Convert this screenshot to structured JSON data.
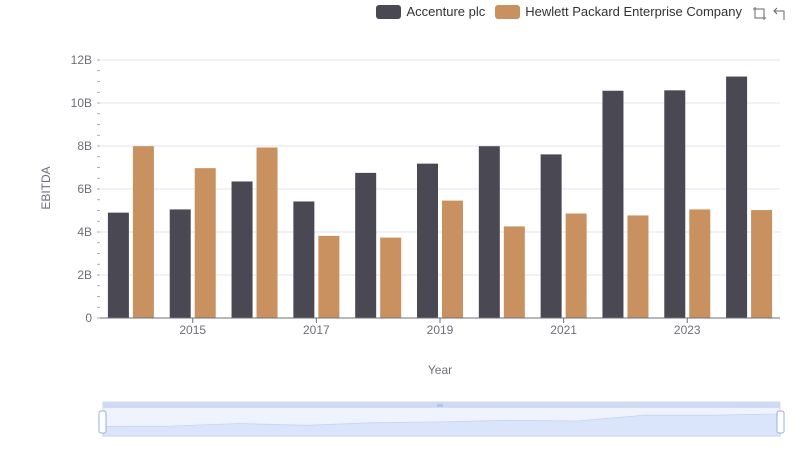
{
  "toolbox": {
    "zoom_icon": "zoom-icon",
    "restore_icon": "restore-icon"
  },
  "chart_data": {
    "type": "bar",
    "xlabel": "Year",
    "ylabel": "EBITDA",
    "categories": [
      "2014",
      "2015",
      "2016",
      "2017",
      "2018",
      "2019",
      "2020",
      "2021",
      "2022",
      "2023",
      "2024"
    ],
    "x_tick_labels": [
      "2015",
      "2017",
      "2019",
      "2021",
      "2023"
    ],
    "y_tick_labels": [
      "0",
      "2B",
      "4B",
      "6B",
      "8B",
      "10B",
      "12B"
    ],
    "ylim": [
      0,
      12000000000
    ],
    "grid": "horizontal",
    "legend_position": "top-right",
    "series": [
      {
        "name": "Accenture plc",
        "color": "#4a4953",
        "values": [
          4900000000,
          5050000000,
          6350000000,
          5420000000,
          6750000000,
          7180000000,
          7990000000,
          7610000000,
          10570000000,
          10590000000,
          11230000000
        ]
      },
      {
        "name": "Hewlett Packard Enterprise Company",
        "color": "#c8915f",
        "values": [
          7990000000,
          6970000000,
          7930000000,
          3820000000,
          3740000000,
          5460000000,
          4260000000,
          4860000000,
          4770000000,
          5050000000,
          5020000000
        ]
      }
    ]
  }
}
